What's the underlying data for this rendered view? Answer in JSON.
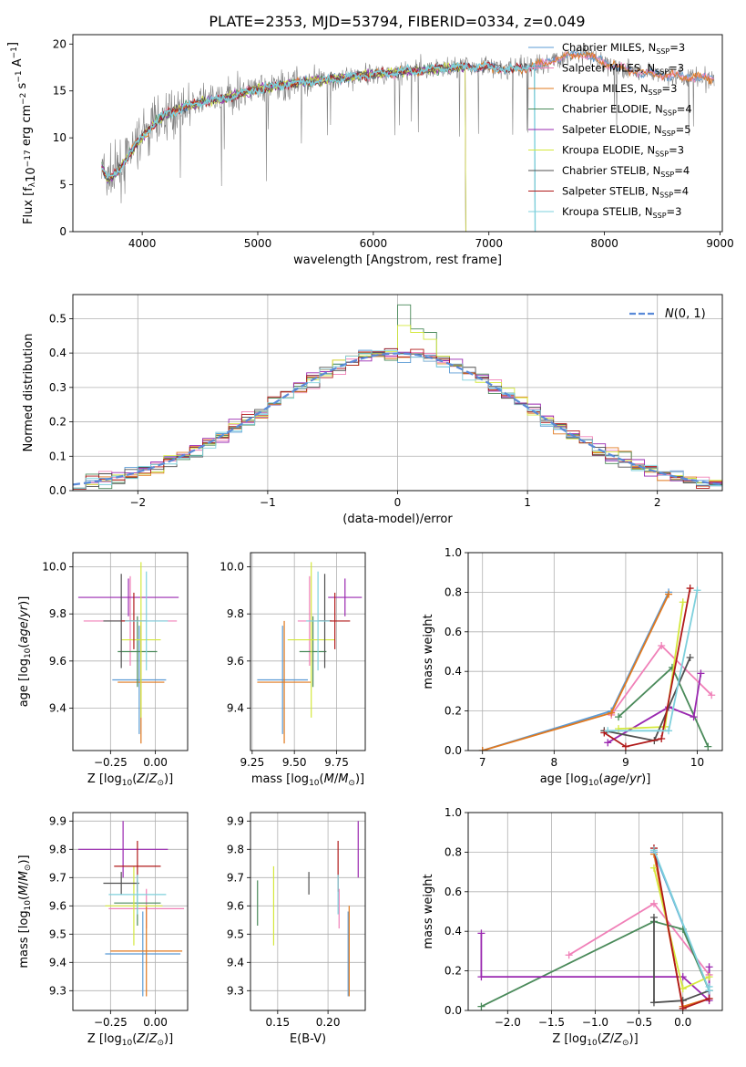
{
  "title": "PLATE=2353, MJD=53794, FIBERID=0334, z=0.049",
  "colors": {
    "Chabrier MILES": "#5b9bd5",
    "Salpeter MILES": "#f080b8",
    "Kroupa MILES": "#e0781e",
    "Chabrier ELODIE": "#4a8a5a",
    "Salpeter ELODIE": "#9a28b0",
    "Kroupa ELODIE": "#d4e83c",
    "Chabrier STELIB": "#505050",
    "Salpeter STELIB": "#b01a1a",
    "Kroupa STELIB": "#7ed0dc",
    "normal": "#5a8ad8",
    "data": "#808080"
  },
  "chart_data": [
    {
      "type": "line",
      "id": "spectrum",
      "title": "PLATE=2353, MJD=53794, FIBERID=0334, z=0.049",
      "xlabel": "wavelength [Angstrom, rest frame]",
      "ylabel": "Flux [f_λ 10^-17 erg cm^-2 s^-1 A^-1]",
      "xlim": [
        3400,
        9020
      ],
      "ylim": [
        0,
        21
      ],
      "xticks": [
        4000,
        5000,
        6000,
        7000,
        8000,
        9000
      ],
      "yticks": [
        0,
        5,
        10,
        15,
        20
      ],
      "legend_position": "top-right",
      "series": [
        {
          "name": "Chabrier MILES, N_SSP=3"
        },
        {
          "name": "Salpeter MILES, N_SSP=3"
        },
        {
          "name": "Kroupa MILES, N_SSP=3"
        },
        {
          "name": "Chabrier ELODIE, N_SSP=4"
        },
        {
          "name": "Salpeter ELODIE, N_SSP=5"
        },
        {
          "name": "Kroupa ELODIE, N_SSP=3"
        },
        {
          "name": "Chabrier STELIB, N_SSP=4"
        },
        {
          "name": "Salpeter STELIB, N_SSP=4"
        },
        {
          "name": "Kroupa STELIB, N_SSP=3"
        }
      ],
      "continuum": {
        "x": [
          3650,
          3700,
          3800,
          3900,
          4000,
          4100,
          4200,
          4300,
          4500,
          4700,
          5000,
          5300,
          5600,
          6000,
          6400,
          6800,
          7000,
          7200,
          7450,
          7600,
          7800,
          8000,
          8200,
          8400,
          8600,
          8800,
          8950
        ],
        "y": [
          7.0,
          5.5,
          6.5,
          8.5,
          10.0,
          11.5,
          12.5,
          13.0,
          13.8,
          14.2,
          15.2,
          15.8,
          16.2,
          16.8,
          17.2,
          17.6,
          17.5,
          17.3,
          17.8,
          18.5,
          19.0,
          18.0,
          17.2,
          16.8,
          16.6,
          16.4,
          16.3
        ]
      },
      "model_range": {
        "Chabrier ELODIE, N_SSP=4": [
          3650,
          6800
        ],
        "Salpeter ELODIE, N_SSP=5": [
          3650,
          6800
        ],
        "Kroupa ELODIE, N_SSP=3": [
          3650,
          6800
        ],
        "Chabrier STELIB, N_SSP=4": [
          3650,
          7400
        ],
        "Salpeter STELIB, N_SSP=4": [
          3650,
          7400
        ],
        "Kroupa STELIB, N_SSP=3": [
          3650,
          7400
        ]
      }
    },
    {
      "type": "histogram",
      "id": "residuals",
      "xlabel": "(data-model)/error",
      "ylabel": "Normed distribution",
      "xlim": [
        -2.5,
        2.5
      ],
      "ylim": [
        0,
        0.57
      ],
      "xticks": [
        -2,
        -1,
        0,
        1,
        2
      ],
      "yticks": [
        0.0,
        0.1,
        0.2,
        0.3,
        0.4,
        0.5
      ],
      "bin_width": 0.1,
      "bin_start": -2.5,
      "normal_label": "N(0,1)",
      "legend_position": "top-right",
      "peak_bins": {
        "Chabrier ELODIE": [
          0.54,
          0.47,
          0.46
        ],
        "Kroupa ELODIE": [
          0.48,
          0.46,
          0.44
        ]
      }
    },
    {
      "type": "errorbar",
      "id": "age-vs-Z",
      "xlabel": "Z [log10(Z/Z⊙)]",
      "ylabel": "age [log10(age/yr)]",
      "xlim": [
        -0.46,
        0.18
      ],
      "ylim": [
        9.22,
        10.06
      ],
      "xticks": [
        -0.25,
        0.0
      ],
      "yticks": [
        9.4,
        9.6,
        9.8,
        10.0
      ],
      "points": [
        {
          "model": "Chabrier MILES",
          "x": -0.09,
          "y": 9.52,
          "xerr": 0.15,
          "yerr": 0.23
        },
        {
          "model": "Salpeter MILES",
          "x": -0.14,
          "y": 9.77,
          "xerr": 0.26,
          "yerr": 0.19
        },
        {
          "model": "Kroupa MILES",
          "x": -0.08,
          "y": 9.51,
          "xerr": 0.13,
          "yerr": 0.26
        },
        {
          "model": "Chabrier ELODIE",
          "x": -0.1,
          "y": 9.64,
          "xerr": 0.11,
          "yerr": 0.15
        },
        {
          "model": "Salpeter ELODIE",
          "x": -0.15,
          "y": 9.87,
          "xerr": 0.28,
          "yerr": 0.08
        },
        {
          "model": "Kroupa ELODIE",
          "x": -0.08,
          "y": 9.69,
          "xerr": 0.11,
          "yerr": 0.33
        },
        {
          "model": "Chabrier STELIB",
          "x": -0.19,
          "y": 9.77,
          "xerr": 0.1,
          "yerr": 0.2
        },
        {
          "model": "Salpeter STELIB",
          "x": -0.12,
          "y": 9.77,
          "xerr": 0.07,
          "yerr": 0.12
        },
        {
          "model": "Kroupa STELIB",
          "x": -0.05,
          "y": 9.77,
          "xerr": 0.12,
          "yerr": 0.21
        }
      ]
    },
    {
      "type": "errorbar",
      "id": "age-vs-mass",
      "xlabel": "mass [log10(M/M⊙)]",
      "ylabel": "",
      "xlim": [
        9.24,
        9.92
      ],
      "ylim": [
        9.22,
        10.06
      ],
      "xticks": [
        9.25,
        9.5,
        9.75
      ],
      "yticks": [
        9.4,
        9.6,
        9.8,
        10.0
      ],
      "points": [
        {
          "model": "Chabrier MILES",
          "x": 9.43,
          "y": 9.52,
          "xerr": 0.15,
          "yerr": 0.23
        },
        {
          "model": "Salpeter MILES",
          "x": 9.59,
          "y": 9.77,
          "xerr": 0.07,
          "yerr": 0.19
        },
        {
          "model": "Kroupa MILES",
          "x": 9.44,
          "y": 9.51,
          "xerr": 0.16,
          "yerr": 0.26
        },
        {
          "model": "Chabrier ELODIE",
          "x": 9.61,
          "y": 9.64,
          "xerr": 0.08,
          "yerr": 0.15
        },
        {
          "model": "Salpeter ELODIE",
          "x": 9.8,
          "y": 9.87,
          "xerr": 0.1,
          "yerr": 0.08
        },
        {
          "model": "Kroupa ELODIE",
          "x": 9.6,
          "y": 9.69,
          "xerr": 0.14,
          "yerr": 0.33
        },
        {
          "model": "Chabrier STELIB",
          "x": 9.68,
          "y": 9.77,
          "xerr": 0.04,
          "yerr": 0.2
        },
        {
          "model": "Salpeter STELIB",
          "x": 9.74,
          "y": 9.77,
          "xerr": 0.09,
          "yerr": 0.12
        },
        {
          "model": "Kroupa STELIB",
          "x": 9.64,
          "y": 9.77,
          "xerr": 0.07,
          "yerr": 0.21
        }
      ]
    },
    {
      "type": "line",
      "id": "weight-vs-age",
      "xlabel": "age [log10(age/yr)]",
      "ylabel": "mass weight",
      "xlim": [
        6.8,
        10.35
      ],
      "ylim": [
        0,
        1
      ],
      "xticks": [
        7,
        8,
        9,
        10
      ],
      "yticks": [
        0.0,
        0.2,
        0.4,
        0.6,
        0.8,
        1.0
      ],
      "series": [
        {
          "model": "Chabrier MILES",
          "x": [
            7.0,
            8.8,
            9.6
          ],
          "y": [
            0.0,
            0.2,
            0.8
          ]
        },
        {
          "model": "Salpeter MILES",
          "x": [
            8.8,
            9.5,
            10.2
          ],
          "y": [
            0.18,
            0.53,
            0.28
          ]
        },
        {
          "model": "Kroupa MILES",
          "x": [
            7.0,
            8.8,
            9.6
          ],
          "y": [
            0.0,
            0.19,
            0.79
          ]
        },
        {
          "model": "Chabrier ELODIE",
          "x": [
            8.9,
            9.65,
            10.15
          ],
          "y": [
            0.17,
            0.42,
            0.02
          ]
        },
        {
          "model": "Salpeter ELODIE",
          "x": [
            8.75,
            9.6,
            9.95,
            10.05
          ],
          "y": [
            0.04,
            0.22,
            0.17,
            0.39
          ]
        },
        {
          "model": "Kroupa ELODIE",
          "x": [
            8.9,
            9.55,
            9.8
          ],
          "y": [
            0.11,
            0.12,
            0.75
          ]
        },
        {
          "model": "Chabrier STELIB",
          "x": [
            8.7,
            9.4,
            9.9
          ],
          "y": [
            0.1,
            0.05,
            0.47
          ]
        },
        {
          "model": "Salpeter STELIB",
          "x": [
            8.7,
            9.0,
            9.5,
            9.9
          ],
          "y": [
            0.09,
            0.02,
            0.06,
            0.82
          ]
        },
        {
          "model": "Kroupa STELIB",
          "x": [
            8.75,
            9.6,
            10.0
          ],
          "y": [
            0.1,
            0.1,
            0.81
          ]
        }
      ]
    },
    {
      "type": "errorbar",
      "id": "mass-vs-Z",
      "xlabel": "Z [log10(Z/Z⊙)]",
      "ylabel": "mass [log10(M/M⊙)]",
      "xlim": [
        -0.46,
        0.18
      ],
      "ylim": [
        9.23,
        9.93
      ],
      "xticks": [
        -0.25,
        0.0
      ],
      "yticks": [
        9.3,
        9.4,
        9.5,
        9.6,
        9.7,
        9.8,
        9.9
      ],
      "points": [
        {
          "model": "Chabrier MILES",
          "x": -0.07,
          "y": 9.43,
          "xerr": 0.21,
          "yerr": 0.15
        },
        {
          "model": "Salpeter MILES",
          "x": -0.05,
          "y": 9.59,
          "xerr": 0.21,
          "yerr": 0.07
        },
        {
          "model": "Kroupa MILES",
          "x": -0.05,
          "y": 9.44,
          "xerr": 0.2,
          "yerr": 0.16
        },
        {
          "model": "Chabrier ELODIE",
          "x": -0.1,
          "y": 9.61,
          "xerr": 0.13,
          "yerr": 0.08
        },
        {
          "model": "Salpeter ELODIE",
          "x": -0.18,
          "y": 9.8,
          "xerr": 0.25,
          "yerr": 0.1
        },
        {
          "model": "Kroupa ELODIE",
          "x": -0.12,
          "y": 9.6,
          "xerr": 0.16,
          "yerr": 0.14
        },
        {
          "model": "Chabrier STELIB",
          "x": -0.19,
          "y": 9.68,
          "xerr": 0.1,
          "yerr": 0.04
        },
        {
          "model": "Salpeter STELIB",
          "x": -0.1,
          "y": 9.74,
          "xerr": 0.13,
          "yerr": 0.09
        },
        {
          "model": "Kroupa STELIB",
          "x": -0.1,
          "y": 9.64,
          "xerr": 0.16,
          "yerr": 0.07
        }
      ]
    },
    {
      "type": "errorbar",
      "id": "mass-vs-EBV",
      "xlabel": "E(B-V)",
      "ylabel": "",
      "xlim": [
        0.123,
        0.237
      ],
      "ylim": [
        9.23,
        9.93
      ],
      "xticks": [
        0.15,
        0.2
      ],
      "yticks": [
        9.3,
        9.4,
        9.5,
        9.6,
        9.7,
        9.8,
        9.9
      ],
      "points": [
        {
          "model": "Chabrier MILES",
          "x": 0.22,
          "y": 9.43,
          "yerr": 0.15
        },
        {
          "model": "Salpeter MILES",
          "x": 0.211,
          "y": 9.59,
          "yerr": 0.07
        },
        {
          "model": "Kroupa MILES",
          "x": 0.221,
          "y": 9.44,
          "yerr": 0.16
        },
        {
          "model": "Chabrier ELODIE",
          "x": 0.13,
          "y": 9.61,
          "yerr": 0.08
        },
        {
          "model": "Salpeter ELODIE",
          "x": 0.23,
          "y": 9.8,
          "yerr": 0.1
        },
        {
          "model": "Kroupa ELODIE",
          "x": 0.146,
          "y": 9.6,
          "yerr": 0.14
        },
        {
          "model": "Chabrier STELIB",
          "x": 0.181,
          "y": 9.68,
          "yerr": 0.04
        },
        {
          "model": "Salpeter STELIB",
          "x": 0.21,
          "y": 9.74,
          "yerr": 0.09
        },
        {
          "model": "Kroupa STELIB",
          "x": 0.21,
          "y": 9.64,
          "yerr": 0.07
        }
      ]
    },
    {
      "type": "line",
      "id": "weight-vs-Z",
      "xlabel": "Z [log10(Z/Z⊙)]",
      "ylabel": "mass weight",
      "xlim": [
        -2.45,
        0.45
      ],
      "ylim": [
        0,
        1
      ],
      "xticks": [
        -2.0,
        -1.5,
        -1.0,
        -0.5,
        0.0
      ],
      "yticks": [
        0.0,
        0.2,
        0.4,
        0.6,
        0.8,
        1.0
      ],
      "series": [
        {
          "model": "Chabrier MILES",
          "x": [
            -0.33,
            0.3,
            0.3
          ],
          "y": [
            0.8,
            0.1,
            0.1
          ]
        },
        {
          "model": "Salpeter MILES",
          "x": [
            -1.3,
            -0.33,
            0.3
          ],
          "y": [
            0.28,
            0.54,
            0.18
          ]
        },
        {
          "model": "Kroupa MILES",
          "x": [
            -0.33,
            0.0,
            0.3
          ],
          "y": [
            0.79,
            0.02,
            0.06
          ]
        },
        {
          "model": "Chabrier ELODIE",
          "x": [
            -2.3,
            -0.33,
            0.0,
            0.3
          ],
          "y": [
            0.02,
            0.45,
            0.41,
            0.1
          ]
        },
        {
          "model": "Salpeter ELODIE",
          "x": [
            -2.3,
            -2.3,
            0.0,
            0.3,
            0.3
          ],
          "y": [
            0.39,
            0.17,
            0.17,
            0.05,
            0.22
          ]
        },
        {
          "model": "Kroupa ELODIE",
          "x": [
            -0.33,
            0.0,
            0.3
          ],
          "y": [
            0.72,
            0.11,
            0.17
          ]
        },
        {
          "model": "Chabrier STELIB",
          "x": [
            -0.33,
            -0.33,
            0.0,
            0.3
          ],
          "y": [
            0.47,
            0.04,
            0.05,
            0.1
          ]
        },
        {
          "model": "Salpeter STELIB",
          "x": [
            -0.33,
            0.0,
            0.3
          ],
          "y": [
            0.82,
            0.01,
            0.06
          ]
        },
        {
          "model": "Kroupa STELIB",
          "x": [
            -0.33,
            0.3,
            0.3
          ],
          "y": [
            0.81,
            0.1,
            0.12
          ]
        }
      ]
    }
  ]
}
